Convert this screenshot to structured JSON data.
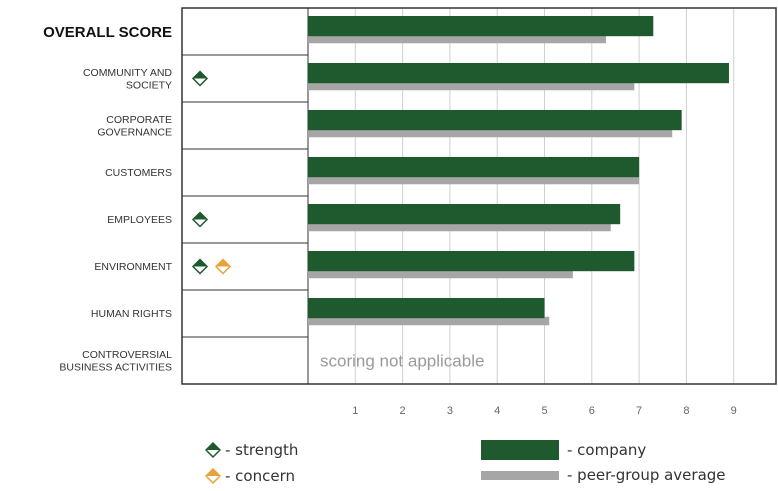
{
  "colors": {
    "company": "#1e5a2e",
    "peer": "#a6a6a6",
    "strength_top": "#1e5a2e",
    "strength_bottom": "#ffffff",
    "concern_top": "#e8a23a",
    "concern_bottom": "#ffffff",
    "grid": "#d0d0d0",
    "border": "#333333"
  },
  "chart_data": {
    "type": "bar",
    "orientation": "horizontal",
    "categories": [
      "OVERALL SCORE",
      "COMMUNITY AND SOCIETY",
      "CORPORATE GOVERNANCE",
      "CUSTOMERS",
      "EMPLOYEES",
      "ENVIRONMENT",
      "HUMAN RIGHTS",
      "CONTROVERSIAL BUSINESS ACTIVITIES"
    ],
    "category_lines": [
      [
        "OVERALL SCORE"
      ],
      [
        "COMMUNITY AND",
        "SOCIETY"
      ],
      [
        "CORPORATE",
        "GOVERNANCE"
      ],
      [
        "CUSTOMERS"
      ],
      [
        "EMPLOYEES"
      ],
      [
        "ENVIRONMENT"
      ],
      [
        "HUMAN RIGHTS"
      ],
      [
        "CONTROVERSIAL",
        "BUSINESS ACTIVITIES"
      ]
    ],
    "series": [
      {
        "name": "company",
        "values": [
          7.3,
          8.9,
          7.9,
          7.0,
          6.6,
          6.9,
          5.0,
          null
        ]
      },
      {
        "name": "peer-group average",
        "values": [
          6.3,
          6.9,
          7.7,
          7.0,
          6.4,
          5.6,
          5.1,
          null
        ]
      }
    ],
    "indicators": [
      [],
      [
        "strength"
      ],
      [],
      [],
      [
        "strength"
      ],
      [
        "strength",
        "concern"
      ],
      [],
      []
    ],
    "xlim": [
      0,
      9
    ],
    "xticks": [
      "1",
      "2",
      "3",
      "4",
      "5",
      "6",
      "7",
      "8",
      "9"
    ],
    "not_applicable_text": "scoring not applicable",
    "grid": true
  },
  "legend": {
    "strength": "- strength",
    "concern": "- concern",
    "company": "- company",
    "peer": "- peer-group average"
  }
}
